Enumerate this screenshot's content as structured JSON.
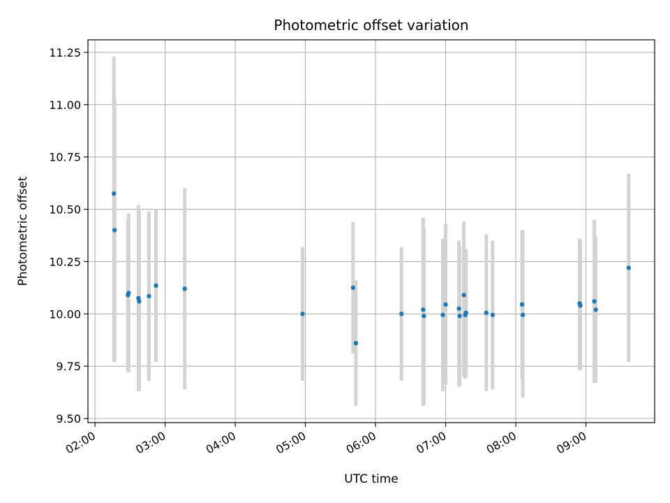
{
  "chart_data": {
    "type": "scatter",
    "title": "Photometric offset variation",
    "xlabel": "UTC time",
    "ylabel": "Photometric offset",
    "x_unit": "hours (UTC)",
    "xlim": [
      1.9,
      9.98
    ],
    "ylim": [
      9.48,
      11.31
    ],
    "grid": true,
    "x_ticks": [
      {
        "value": 2,
        "label": "02:00"
      },
      {
        "value": 3,
        "label": "03:00"
      },
      {
        "value": 4,
        "label": "04:00"
      },
      {
        "value": 5,
        "label": "05:00"
      },
      {
        "value": 6,
        "label": "06:00"
      },
      {
        "value": 7,
        "label": "07:00"
      },
      {
        "value": 8,
        "label": "08:00"
      },
      {
        "value": 9,
        "label": "09:00"
      }
    ],
    "y_ticks": [
      {
        "value": 9.5,
        "label": "9.50"
      },
      {
        "value": 9.75,
        "label": "9.75"
      },
      {
        "value": 10.0,
        "label": "10.00"
      },
      {
        "value": 10.25,
        "label": "10.25"
      },
      {
        "value": 10.5,
        "label": "10.50"
      },
      {
        "value": 10.75,
        "label": "10.75"
      },
      {
        "value": 11.0,
        "label": "11.00"
      },
      {
        "value": 11.25,
        "label": "11.25"
      }
    ],
    "point_color": "#1f77b4",
    "errorbar_color": "#d3d3d3",
    "points": [
      {
        "x": 2.27,
        "y": 10.575,
        "lo": 9.77,
        "hi": 11.23
      },
      {
        "x": 2.28,
        "y": 10.4,
        "lo": 9.77,
        "hi": 11.03
      },
      {
        "x": 2.47,
        "y": 10.09,
        "lo": 9.72,
        "hi": 10.45
      },
      {
        "x": 2.48,
        "y": 10.1,
        "lo": 9.72,
        "hi": 10.48
      },
      {
        "x": 2.62,
        "y": 10.075,
        "lo": 9.63,
        "hi": 10.52
      },
      {
        "x": 2.63,
        "y": 10.06,
        "lo": 9.63,
        "hi": 10.49
      },
      {
        "x": 2.77,
        "y": 10.085,
        "lo": 9.68,
        "hi": 10.49
      },
      {
        "x": 2.87,
        "y": 10.135,
        "lo": 9.77,
        "hi": 10.5
      },
      {
        "x": 3.28,
        "y": 10.12,
        "lo": 9.64,
        "hi": 10.6
      },
      {
        "x": 4.96,
        "y": 10.0,
        "lo": 9.68,
        "hi": 10.32
      },
      {
        "x": 5.68,
        "y": 10.125,
        "lo": 9.81,
        "hi": 10.44
      },
      {
        "x": 5.72,
        "y": 9.86,
        "lo": 9.56,
        "hi": 10.16
      },
      {
        "x": 6.37,
        "y": 10.0,
        "lo": 9.68,
        "hi": 10.32
      },
      {
        "x": 6.68,
        "y": 10.02,
        "lo": 9.56,
        "hi": 10.46
      },
      {
        "x": 6.69,
        "y": 9.99,
        "lo": 9.57,
        "hi": 10.41
      },
      {
        "x": 6.96,
        "y": 9.995,
        "lo": 9.63,
        "hi": 10.36
      },
      {
        "x": 7.0,
        "y": 10.045,
        "lo": 9.66,
        "hi": 10.43
      },
      {
        "x": 7.19,
        "y": 10.025,
        "lo": 9.65,
        "hi": 10.35
      },
      {
        "x": 7.2,
        "y": 9.99,
        "lo": 9.66,
        "hi": 10.32
      },
      {
        "x": 7.26,
        "y": 10.09,
        "lo": 9.7,
        "hi": 10.44
      },
      {
        "x": 7.28,
        "y": 9.995,
        "lo": 9.69,
        "hi": 10.3
      },
      {
        "x": 7.29,
        "y": 10.005,
        "lo": 9.7,
        "hi": 10.31
      },
      {
        "x": 7.58,
        "y": 10.005,
        "lo": 9.63,
        "hi": 10.38
      },
      {
        "x": 7.67,
        "y": 9.995,
        "lo": 9.64,
        "hi": 10.35
      },
      {
        "x": 8.09,
        "y": 10.045,
        "lo": 9.69,
        "hi": 10.4
      },
      {
        "x": 8.1,
        "y": 9.995,
        "lo": 9.6,
        "hi": 10.4
      },
      {
        "x": 8.91,
        "y": 10.05,
        "lo": 9.73,
        "hi": 10.36
      },
      {
        "x": 8.92,
        "y": 10.04,
        "lo": 9.73,
        "hi": 10.35
      },
      {
        "x": 9.12,
        "y": 10.06,
        "lo": 9.67,
        "hi": 10.45
      },
      {
        "x": 9.14,
        "y": 10.02,
        "lo": 9.67,
        "hi": 10.37
      },
      {
        "x": 9.61,
        "y": 10.22,
        "lo": 9.77,
        "hi": 10.67
      }
    ]
  }
}
